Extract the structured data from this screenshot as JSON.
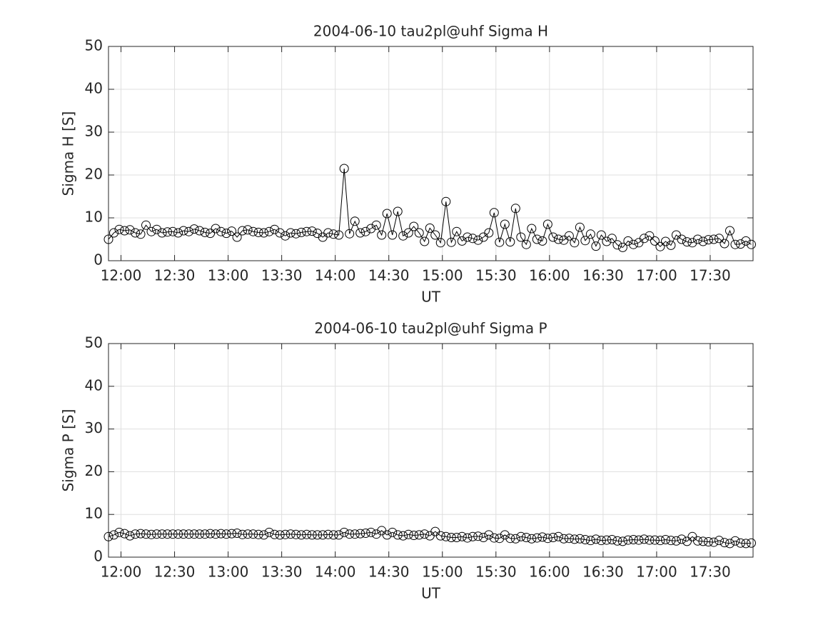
{
  "chart_data": [
    {
      "type": "line",
      "title": "2004-06-10  tau2pl@uhf Sigma H",
      "xlabel": "UT",
      "ylabel": "Sigma H [S]",
      "xlim": [
        "11:53",
        "17:54"
      ],
      "xticks": [
        "12:00",
        "12:30",
        "13:00",
        "13:30",
        "14:00",
        "14:30",
        "15:00",
        "15:30",
        "16:00",
        "16:30",
        "17:00",
        "17:30"
      ],
      "ylim": [
        0,
        50
      ],
      "yticks": [
        0,
        10,
        20,
        30,
        40,
        50
      ],
      "grid": true,
      "marker": "circle",
      "x": [
        "11:53",
        "11:56",
        "11:59",
        "12:02",
        "12:05",
        "12:08",
        "12:11",
        "12:14",
        "12:17",
        "12:20",
        "12:23",
        "12:26",
        "12:29",
        "12:32",
        "12:35",
        "12:38",
        "12:41",
        "12:44",
        "12:47",
        "12:50",
        "12:53",
        "12:56",
        "12:59",
        "13:02",
        "13:05",
        "13:08",
        "13:11",
        "13:14",
        "13:17",
        "13:20",
        "13:23",
        "13:26",
        "13:29",
        "13:32",
        "13:35",
        "13:38",
        "13:41",
        "13:44",
        "13:47",
        "13:50",
        "13:53",
        "13:56",
        "13:59",
        "14:02",
        "14:05",
        "14:08",
        "14:11",
        "14:14",
        "14:17",
        "14:20",
        "14:23",
        "14:26",
        "14:29",
        "14:32",
        "14:35",
        "14:38",
        "14:41",
        "14:44",
        "14:47",
        "14:50",
        "14:53",
        "14:56",
        "14:59",
        "15:02",
        "15:05",
        "15:08",
        "15:11",
        "15:14",
        "15:17",
        "15:20",
        "15:23",
        "15:26",
        "15:29",
        "15:32",
        "15:35",
        "15:38",
        "15:41",
        "15:44",
        "15:47",
        "15:50",
        "15:53",
        "15:56",
        "15:59",
        "16:02",
        "16:05",
        "16:08",
        "16:11",
        "16:14",
        "16:17",
        "16:20",
        "16:23",
        "16:26",
        "16:29",
        "16:32",
        "16:35",
        "16:38",
        "16:41",
        "16:44",
        "16:47",
        "16:50",
        "16:53",
        "16:56",
        "16:59",
        "17:02",
        "17:05",
        "17:08",
        "17:11",
        "17:14",
        "17:17",
        "17:20",
        "17:23",
        "17:26",
        "17:29",
        "17:32",
        "17:35",
        "17:38",
        "17:41",
        "17:44",
        "17:47",
        "17:50",
        "17:53"
      ],
      "series": [
        {
          "color": "#000000",
          "values": [
            5.0,
            6.5,
            7.3,
            7.0,
            7.2,
            6.5,
            6.2,
            8.3,
            6.8,
            7.3,
            6.5,
            6.7,
            6.8,
            6.5,
            7.0,
            6.8,
            7.4,
            7.0,
            6.6,
            6.4,
            7.5,
            6.8,
            6.4,
            6.9,
            5.5,
            7.0,
            7.2,
            6.8,
            6.6,
            6.5,
            6.8,
            7.3,
            6.5,
            5.8,
            6.5,
            6.3,
            6.6,
            6.8,
            6.9,
            6.4,
            5.5,
            6.5,
            6.2,
            6.0,
            21.5,
            6.3,
            9.2,
            6.5,
            6.8,
            7.5,
            8.3,
            6.0,
            11.0,
            6.0,
            11.5,
            5.8,
            6.5,
            8.0,
            6.5,
            4.5,
            7.6,
            6.0,
            4.2,
            13.8,
            4.3,
            6.8,
            4.6,
            5.5,
            5.2,
            4.8,
            5.5,
            6.5,
            11.2,
            4.3,
            8.5,
            4.4,
            12.2,
            5.5,
            3.8,
            7.5,
            5.0,
            4.6,
            8.5,
            5.5,
            5.0,
            4.8,
            5.8,
            4.2,
            7.8,
            4.7,
            6.2,
            3.4,
            6.0,
            4.5,
            5.2,
            3.7,
            3.1,
            4.6,
            3.8,
            4.2,
            5.2,
            5.8,
            4.6,
            3.3,
            4.5,
            3.6,
            6.0,
            5.0,
            4.4,
            4.2,
            5.0,
            4.5,
            4.9,
            5.0,
            5.2,
            4.0,
            7.0,
            3.8,
            3.9,
            4.6,
            3.8
          ]
        }
      ]
    },
    {
      "type": "line",
      "title": "2004-06-10  tau2pl@uhf Sigma P",
      "xlabel": "UT",
      "ylabel": "Sigma P [S]",
      "xlim": [
        "11:53",
        "17:54"
      ],
      "xticks": [
        "12:00",
        "12:30",
        "13:00",
        "13:30",
        "14:00",
        "14:30",
        "15:00",
        "15:30",
        "16:00",
        "16:30",
        "17:00",
        "17:30"
      ],
      "ylim": [
        0,
        50
      ],
      "yticks": [
        0,
        10,
        20,
        30,
        40,
        50
      ],
      "grid": true,
      "marker": "circle",
      "x": [
        "11:53",
        "11:56",
        "11:59",
        "12:02",
        "12:05",
        "12:08",
        "12:11",
        "12:14",
        "12:17",
        "12:20",
        "12:23",
        "12:26",
        "12:29",
        "12:32",
        "12:35",
        "12:38",
        "12:41",
        "12:44",
        "12:47",
        "12:50",
        "12:53",
        "12:56",
        "12:59",
        "13:02",
        "13:05",
        "13:08",
        "13:11",
        "13:14",
        "13:17",
        "13:20",
        "13:23",
        "13:26",
        "13:29",
        "13:32",
        "13:35",
        "13:38",
        "13:41",
        "13:44",
        "13:47",
        "13:50",
        "13:53",
        "13:56",
        "13:59",
        "14:02",
        "14:05",
        "14:08",
        "14:11",
        "14:14",
        "14:17",
        "14:20",
        "14:23",
        "14:26",
        "14:29",
        "14:32",
        "14:35",
        "14:38",
        "14:41",
        "14:44",
        "14:47",
        "14:50",
        "14:53",
        "14:56",
        "14:59",
        "15:02",
        "15:05",
        "15:08",
        "15:11",
        "15:14",
        "15:17",
        "15:20",
        "15:23",
        "15:26",
        "15:29",
        "15:32",
        "15:35",
        "15:38",
        "15:41",
        "15:44",
        "15:47",
        "15:50",
        "15:53",
        "15:56",
        "15:59",
        "16:02",
        "16:05",
        "16:08",
        "16:11",
        "16:14",
        "16:17",
        "16:20",
        "16:23",
        "16:26",
        "16:29",
        "16:32",
        "16:35",
        "16:38",
        "16:41",
        "16:44",
        "16:47",
        "16:50",
        "16:53",
        "16:56",
        "16:59",
        "17:02",
        "17:05",
        "17:08",
        "17:11",
        "17:14",
        "17:17",
        "17:20",
        "17:23",
        "17:26",
        "17:29",
        "17:32",
        "17:35",
        "17:38",
        "17:41",
        "17:44",
        "17:47",
        "17:50",
        "17:53"
      ],
      "series": [
        {
          "color": "#000000",
          "values": [
            4.8,
            5.2,
            5.8,
            5.5,
            5.0,
            5.4,
            5.5,
            5.4,
            5.3,
            5.4,
            5.4,
            5.4,
            5.4,
            5.4,
            5.4,
            5.4,
            5.4,
            5.4,
            5.4,
            5.5,
            5.4,
            5.5,
            5.4,
            5.5,
            5.6,
            5.3,
            5.4,
            5.4,
            5.3,
            5.2,
            5.8,
            5.3,
            5.2,
            5.3,
            5.4,
            5.3,
            5.2,
            5.3,
            5.2,
            5.2,
            5.2,
            5.3,
            5.2,
            5.2,
            5.8,
            5.4,
            5.4,
            5.5,
            5.6,
            5.8,
            5.4,
            6.2,
            5.2,
            5.8,
            5.2,
            5.0,
            5.3,
            5.1,
            5.2,
            5.4,
            5.0,
            6.0,
            5.0,
            4.8,
            4.6,
            4.6,
            4.8,
            4.5,
            4.8,
            4.9,
            4.6,
            5.2,
            4.5,
            4.4,
            5.2,
            4.4,
            4.3,
            4.8,
            4.6,
            4.3,
            4.5,
            4.7,
            4.4,
            4.6,
            4.8,
            4.3,
            4.4,
            4.2,
            4.3,
            4.1,
            3.9,
            4.2,
            3.9,
            4.0,
            4.1,
            3.8,
            3.7,
            4.0,
            4.1,
            4.0,
            4.2,
            4.0,
            4.0,
            3.9,
            4.1,
            3.9,
            3.8,
            4.2,
            3.7,
            4.8,
            3.8,
            3.7,
            3.6,
            3.5,
            3.9,
            3.4,
            3.2,
            3.8,
            3.3,
            3.2,
            3.3
          ]
        }
      ]
    }
  ]
}
